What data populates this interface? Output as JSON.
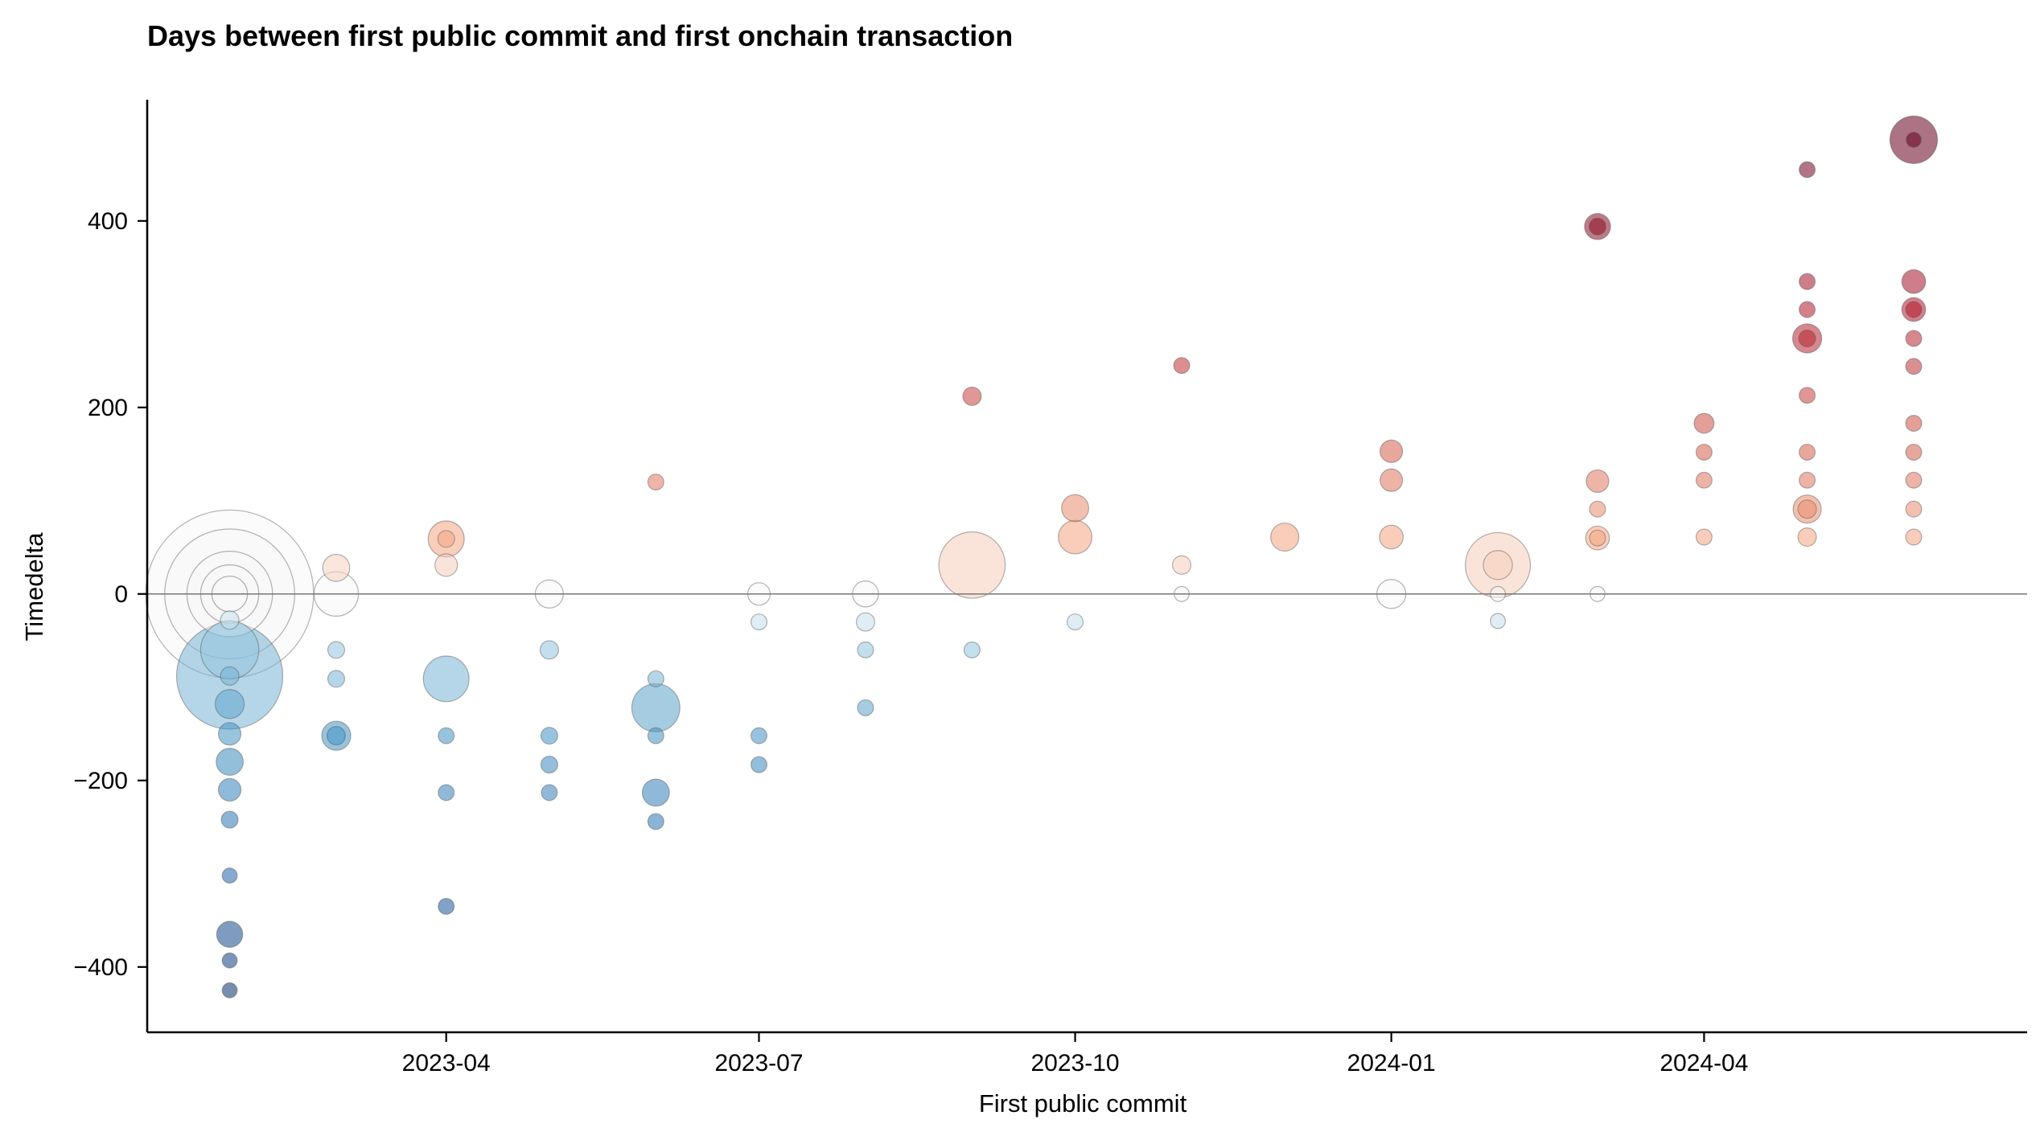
{
  "chart_data": {
    "type": "scatter",
    "title": "Days between first public commit and first onchain transaction",
    "xlabel": "First public commit",
    "ylabel": "Timedelta",
    "x_axis_kind": "date",
    "xlim": [
      "2023-01-04",
      "2024-07-04"
    ],
    "ylim": [
      -470,
      530
    ],
    "x_ticks": [
      "2023-04-01",
      "2023-07-01",
      "2023-10-01",
      "2024-01-01",
      "2024-04-01"
    ],
    "x_tick_labels": [
      "2023-04",
      "2023-07",
      "2023-10",
      "2024-01",
      "2024-04"
    ],
    "y_ticks": [
      -400,
      -200,
      0,
      200,
      400
    ],
    "y_tick_labels": [
      "−400",
      "−200",
      "0",
      "200",
      "400"
    ],
    "reference_line_y": 0,
    "color_scale": "diverging blue (negative) – white (zero) – red (positive)",
    "grid": false,
    "legend": "none",
    "points": [
      {
        "x": "2023-01-28",
        "y": 0,
        "size": 1000
      },
      {
        "x": "2023-01-28",
        "y": 0,
        "size": 600
      },
      {
        "x": "2023-01-28",
        "y": 0,
        "size": 260
      },
      {
        "x": "2023-01-28",
        "y": 0,
        "size": 120
      },
      {
        "x": "2023-01-28",
        "y": 0,
        "size": 45
      },
      {
        "x": "2023-01-28",
        "y": -28,
        "size": 12
      },
      {
        "x": "2023-01-28",
        "y": -60,
        "size": 120
      },
      {
        "x": "2023-01-28",
        "y": -88,
        "size": 400
      },
      {
        "x": "2023-01-28",
        "y": -88,
        "size": 12
      },
      {
        "x": "2023-01-28",
        "y": -118,
        "size": 30
      },
      {
        "x": "2023-01-28",
        "y": -150,
        "size": 18
      },
      {
        "x": "2023-01-28",
        "y": -180,
        "size": 26
      },
      {
        "x": "2023-01-28",
        "y": -210,
        "size": 18
      },
      {
        "x": "2023-01-28",
        "y": -242,
        "size": 10
      },
      {
        "x": "2023-01-28",
        "y": -302,
        "size": 8
      },
      {
        "x": "2023-01-28",
        "y": -365,
        "size": 24
      },
      {
        "x": "2023-01-28",
        "y": -393,
        "size": 8
      },
      {
        "x": "2023-01-28",
        "y": -425,
        "size": 8
      },
      {
        "x": "2023-02-28",
        "y": 28,
        "size": 26
      },
      {
        "x": "2023-02-28",
        "y": 0,
        "size": 70
      },
      {
        "x": "2023-02-28",
        "y": -60,
        "size": 10
      },
      {
        "x": "2023-02-28",
        "y": -91,
        "size": 10
      },
      {
        "x": "2023-02-28",
        "y": -152,
        "size": 30
      },
      {
        "x": "2023-02-28",
        "y": -152,
        "size": 12
      },
      {
        "x": "2023-04-01",
        "y": 59,
        "size": 46
      },
      {
        "x": "2023-04-01",
        "y": 59,
        "size": 10
      },
      {
        "x": "2023-04-01",
        "y": 31,
        "size": 18
      },
      {
        "x": "2023-04-01",
        "y": -91,
        "size": 74
      },
      {
        "x": "2023-04-01",
        "y": -152,
        "size": 9
      },
      {
        "x": "2023-04-01",
        "y": -213,
        "size": 9
      },
      {
        "x": "2023-04-01",
        "y": -335,
        "size": 9
      },
      {
        "x": "2023-05-01",
        "y": 0,
        "size": 28
      },
      {
        "x": "2023-05-01",
        "y": -60,
        "size": 12
      },
      {
        "x": "2023-05-01",
        "y": -152,
        "size": 10
      },
      {
        "x": "2023-05-01",
        "y": -183,
        "size": 10
      },
      {
        "x": "2023-05-01",
        "y": -213,
        "size": 9
      },
      {
        "x": "2023-06-01",
        "y": 120,
        "size": 9
      },
      {
        "x": "2023-06-01",
        "y": -91,
        "size": 9
      },
      {
        "x": "2023-06-01",
        "y": -122,
        "size": 82
      },
      {
        "x": "2023-06-01",
        "y": -152,
        "size": 9
      },
      {
        "x": "2023-06-01",
        "y": -213,
        "size": 26
      },
      {
        "x": "2023-06-01",
        "y": -244,
        "size": 9
      },
      {
        "x": "2023-07-01",
        "y": 0,
        "size": 18
      },
      {
        "x": "2023-07-01",
        "y": -30,
        "size": 9
      },
      {
        "x": "2023-07-01",
        "y": -152,
        "size": 9
      },
      {
        "x": "2023-07-01",
        "y": -183,
        "size": 9
      },
      {
        "x": "2023-08-01",
        "y": 0,
        "size": 24
      },
      {
        "x": "2023-08-01",
        "y": -30,
        "size": 12
      },
      {
        "x": "2023-08-01",
        "y": -60,
        "size": 9
      },
      {
        "x": "2023-08-01",
        "y": -122,
        "size": 9
      },
      {
        "x": "2023-09-01",
        "y": 212,
        "size": 12
      },
      {
        "x": "2023-09-01",
        "y": 31,
        "size": 156
      },
      {
        "x": "2023-09-01",
        "y": -60,
        "size": 9
      },
      {
        "x": "2023-10-01",
        "y": 92,
        "size": 26
      },
      {
        "x": "2023-10-01",
        "y": 61,
        "size": 40
      },
      {
        "x": "2023-10-01",
        "y": -30,
        "size": 9
      },
      {
        "x": "2023-11-01",
        "y": 245,
        "size": 9
      },
      {
        "x": "2023-11-01",
        "y": 31,
        "size": 12
      },
      {
        "x": "2023-11-01",
        "y": 0,
        "size": 8
      },
      {
        "x": "2023-12-01",
        "y": 61,
        "size": 28
      },
      {
        "x": "2024-01-01",
        "y": 153,
        "size": 18
      },
      {
        "x": "2024-01-01",
        "y": 122,
        "size": 18
      },
      {
        "x": "2024-01-01",
        "y": 61,
        "size": 20
      },
      {
        "x": "2024-01-01",
        "y": 0,
        "size": 30
      },
      {
        "x": "2024-02-01",
        "y": 31,
        "size": 150
      },
      {
        "x": "2024-02-01",
        "y": 31,
        "size": 30
      },
      {
        "x": "2024-02-01",
        "y": 0,
        "size": 8
      },
      {
        "x": "2024-02-01",
        "y": -29,
        "size": 8
      },
      {
        "x": "2024-03-01",
        "y": 394,
        "size": 24
      },
      {
        "x": "2024-03-01",
        "y": 394,
        "size": 10
      },
      {
        "x": "2024-03-01",
        "y": 121,
        "size": 18
      },
      {
        "x": "2024-03-01",
        "y": 91,
        "size": 9
      },
      {
        "x": "2024-03-01",
        "y": 60,
        "size": 20
      },
      {
        "x": "2024-03-01",
        "y": 60,
        "size": 9
      },
      {
        "x": "2024-03-01",
        "y": 0,
        "size": 8
      },
      {
        "x": "2024-04-01",
        "y": 183,
        "size": 14
      },
      {
        "x": "2024-04-01",
        "y": 152,
        "size": 9
      },
      {
        "x": "2024-04-01",
        "y": 122,
        "size": 9
      },
      {
        "x": "2024-04-01",
        "y": 61,
        "size": 9
      },
      {
        "x": "2024-05-01",
        "y": 455,
        "size": 9
      },
      {
        "x": "2024-05-01",
        "y": 335,
        "size": 9
      },
      {
        "x": "2024-05-01",
        "y": 305,
        "size": 9
      },
      {
        "x": "2024-05-01",
        "y": 274,
        "size": 30
      },
      {
        "x": "2024-05-01",
        "y": 274,
        "size": 10
      },
      {
        "x": "2024-05-01",
        "y": 213,
        "size": 9
      },
      {
        "x": "2024-05-01",
        "y": 152,
        "size": 9
      },
      {
        "x": "2024-05-01",
        "y": 122,
        "size": 9
      },
      {
        "x": "2024-05-01",
        "y": 91,
        "size": 28
      },
      {
        "x": "2024-05-01",
        "y": 91,
        "size": 12
      },
      {
        "x": "2024-05-01",
        "y": 61,
        "size": 12
      },
      {
        "x": "2024-06-01",
        "y": 487,
        "size": 80
      },
      {
        "x": "2024-06-01",
        "y": 487,
        "size": 8
      },
      {
        "x": "2024-06-01",
        "y": 335,
        "size": 20
      },
      {
        "x": "2024-06-01",
        "y": 305,
        "size": 20
      },
      {
        "x": "2024-06-01",
        "y": 305,
        "size": 9
      },
      {
        "x": "2024-06-01",
        "y": 274,
        "size": 9
      },
      {
        "x": "2024-06-01",
        "y": 244,
        "size": 9
      },
      {
        "x": "2024-06-01",
        "y": 183,
        "size": 9
      },
      {
        "x": "2024-06-01",
        "y": 152,
        "size": 9
      },
      {
        "x": "2024-06-01",
        "y": 122,
        "size": 9
      },
      {
        "x": "2024-06-01",
        "y": 91,
        "size": 9
      },
      {
        "x": "2024-06-01",
        "y": 61,
        "size": 9
      }
    ]
  }
}
